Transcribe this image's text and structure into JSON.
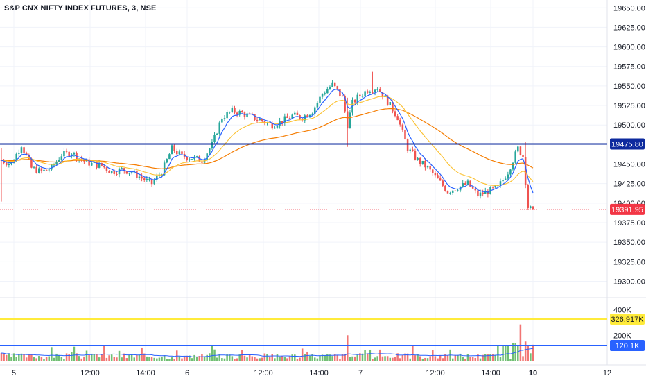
{
  "header": {
    "title": "S&P CNX NIFTY INDEX FUTURES, 3, NSE"
  },
  "colors": {
    "up": "#26a69a",
    "down": "#ef5350",
    "ema_fast": "#2962ff",
    "ema_mid": "#fbc02d",
    "ema_slow": "#f57c00",
    "hline": "#0d2a9e",
    "vol_ma": "#2962ff",
    "vol_level_high": "#ffeb3b",
    "vol_level_low": "#2962ff",
    "last_price": "#f23645",
    "grid": "#f0f3fa",
    "axis_text": "#131722"
  },
  "chart_data": {
    "type": "candlestick",
    "price_axis": {
      "ylim": [
        19280,
        19660
      ],
      "ticks": [
        "19650.00",
        "19625.00",
        "19600.00",
        "19575.00",
        "19550.00",
        "19525.00",
        "19500.00",
        "19475.00",
        "19450.00",
        "19425.00",
        "19400.00",
        "19375.00",
        "19350.00",
        "19325.00",
        "19300.00"
      ]
    },
    "time_axis": {
      "labels": [
        "5",
        "12:00",
        "14:00",
        "6",
        "12:00",
        "14:00",
        "7",
        "12:00",
        "14:00",
        "10",
        "12"
      ],
      "bold": [
        false,
        false,
        false,
        false,
        false,
        false,
        false,
        false,
        false,
        true,
        false
      ]
    },
    "horizontal_line": {
      "value": 19475.8,
      "label": "19475.80"
    },
    "last_price": {
      "value": 19391.95,
      "label": "19391.95"
    },
    "volume_axis": {
      "ylim": [
        0,
        490000
      ],
      "ticks": [
        "400K",
        "200K"
      ]
    },
    "volume_levels": [
      {
        "value": 326917,
        "label": "326.917K"
      },
      {
        "value": 120100,
        "label": "120.1K"
      }
    ],
    "anchors": [
      [
        0,
        19455
      ],
      [
        4,
        19450
      ],
      [
        8,
        19475
      ],
      [
        12,
        19445
      ],
      [
        16,
        19440
      ],
      [
        20,
        19445
      ],
      [
        24,
        19462
      ],
      [
        28,
        19465
      ],
      [
        32,
        19455
      ],
      [
        36,
        19450
      ],
      [
        40,
        19448
      ],
      [
        44,
        19440
      ],
      [
        48,
        19443
      ],
      [
        52,
        19440
      ],
      [
        56,
        19432
      ],
      [
        60,
        19425
      ],
      [
        64,
        19440
      ],
      [
        68,
        19470
      ],
      [
        72,
        19460
      ],
      [
        76,
        19458
      ],
      [
        80,
        19455
      ],
      [
        84,
        19475
      ],
      [
        88,
        19510
      ],
      [
        92,
        19518
      ],
      [
        96,
        19515
      ],
      [
        100,
        19510
      ],
      [
        104,
        19505
      ],
      [
        108,
        19500
      ],
      [
        112,
        19505
      ],
      [
        116,
        19512
      ],
      [
        120,
        19510
      ],
      [
        124,
        19518
      ],
      [
        128,
        19540
      ],
      [
        132,
        19552
      ],
      [
        136,
        19535
      ],
      [
        138,
        19500
      ],
      [
        140,
        19528
      ],
      [
        142,
        19535
      ],
      [
        146,
        19545
      ],
      [
        150,
        19548
      ],
      [
        154,
        19530
      ],
      [
        158,
        19510
      ],
      [
        162,
        19470
      ],
      [
        166,
        19455
      ],
      [
        170,
        19445
      ],
      [
        174,
        19430
      ],
      [
        178,
        19415
      ],
      [
        182,
        19420
      ],
      [
        186,
        19425
      ],
      [
        190,
        19410
      ],
      [
        194,
        19415
      ],
      [
        198,
        19420
      ],
      [
        202,
        19440
      ],
      [
        206,
        19470
      ],
      [
        208,
        19460
      ],
      [
        210,
        19395
      ],
      [
        212,
        19390
      ]
    ],
    "spikes": [
      [
        0,
        19402,
        19470
      ],
      [
        138,
        19472,
        19535
      ],
      [
        148,
        19548,
        19568
      ],
      [
        209,
        19420,
        19478
      ]
    ],
    "n_bars": 213,
    "seed": 7
  }
}
